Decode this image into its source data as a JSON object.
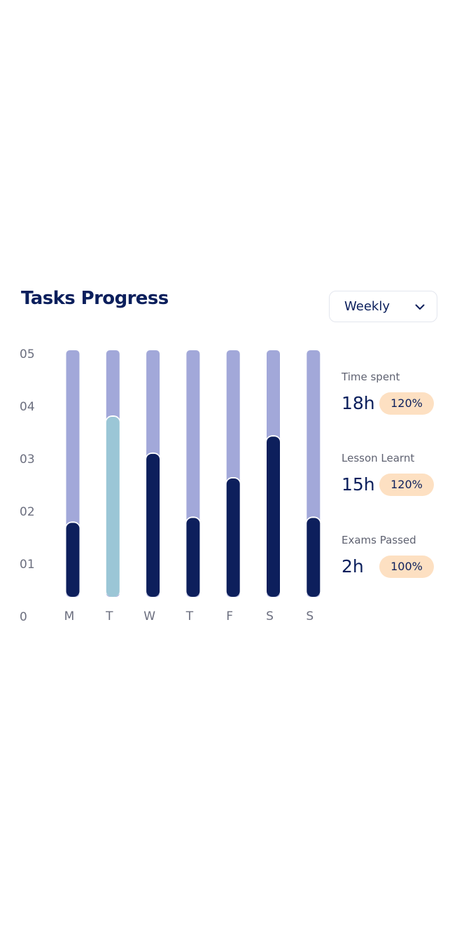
{
  "title": "Tasks Progress",
  "period": {
    "label": "Weekly",
    "icon": "chevron-down-icon"
  },
  "chart_data": {
    "type": "bar",
    "categories": [
      "M",
      "T",
      "W",
      "T",
      "F",
      "S",
      "S"
    ],
    "values": [
      1.5,
      3.65,
      2.9,
      1.6,
      2.4,
      3.25,
      1.6
    ],
    "max": 5,
    "highlight_index": 1,
    "y_ticks": [
      "0",
      "01",
      "02",
      "03",
      "04",
      "05"
    ],
    "ylim": [
      0,
      5
    ],
    "colors": {
      "track": "#a2a8d9",
      "fill": "#0d1f5c",
      "highlight": "#9bc6d6"
    }
  },
  "stats": [
    {
      "label": "Time spent",
      "value": "18h",
      "badge": "120%"
    },
    {
      "label": "Lesson Learnt",
      "value": "15h",
      "badge": "120%"
    },
    {
      "label": "Exams Passed",
      "value": "2h",
      "badge": "100%"
    }
  ],
  "colors": {
    "primary": "#0b1f5c",
    "badge": "#fde0c2"
  }
}
